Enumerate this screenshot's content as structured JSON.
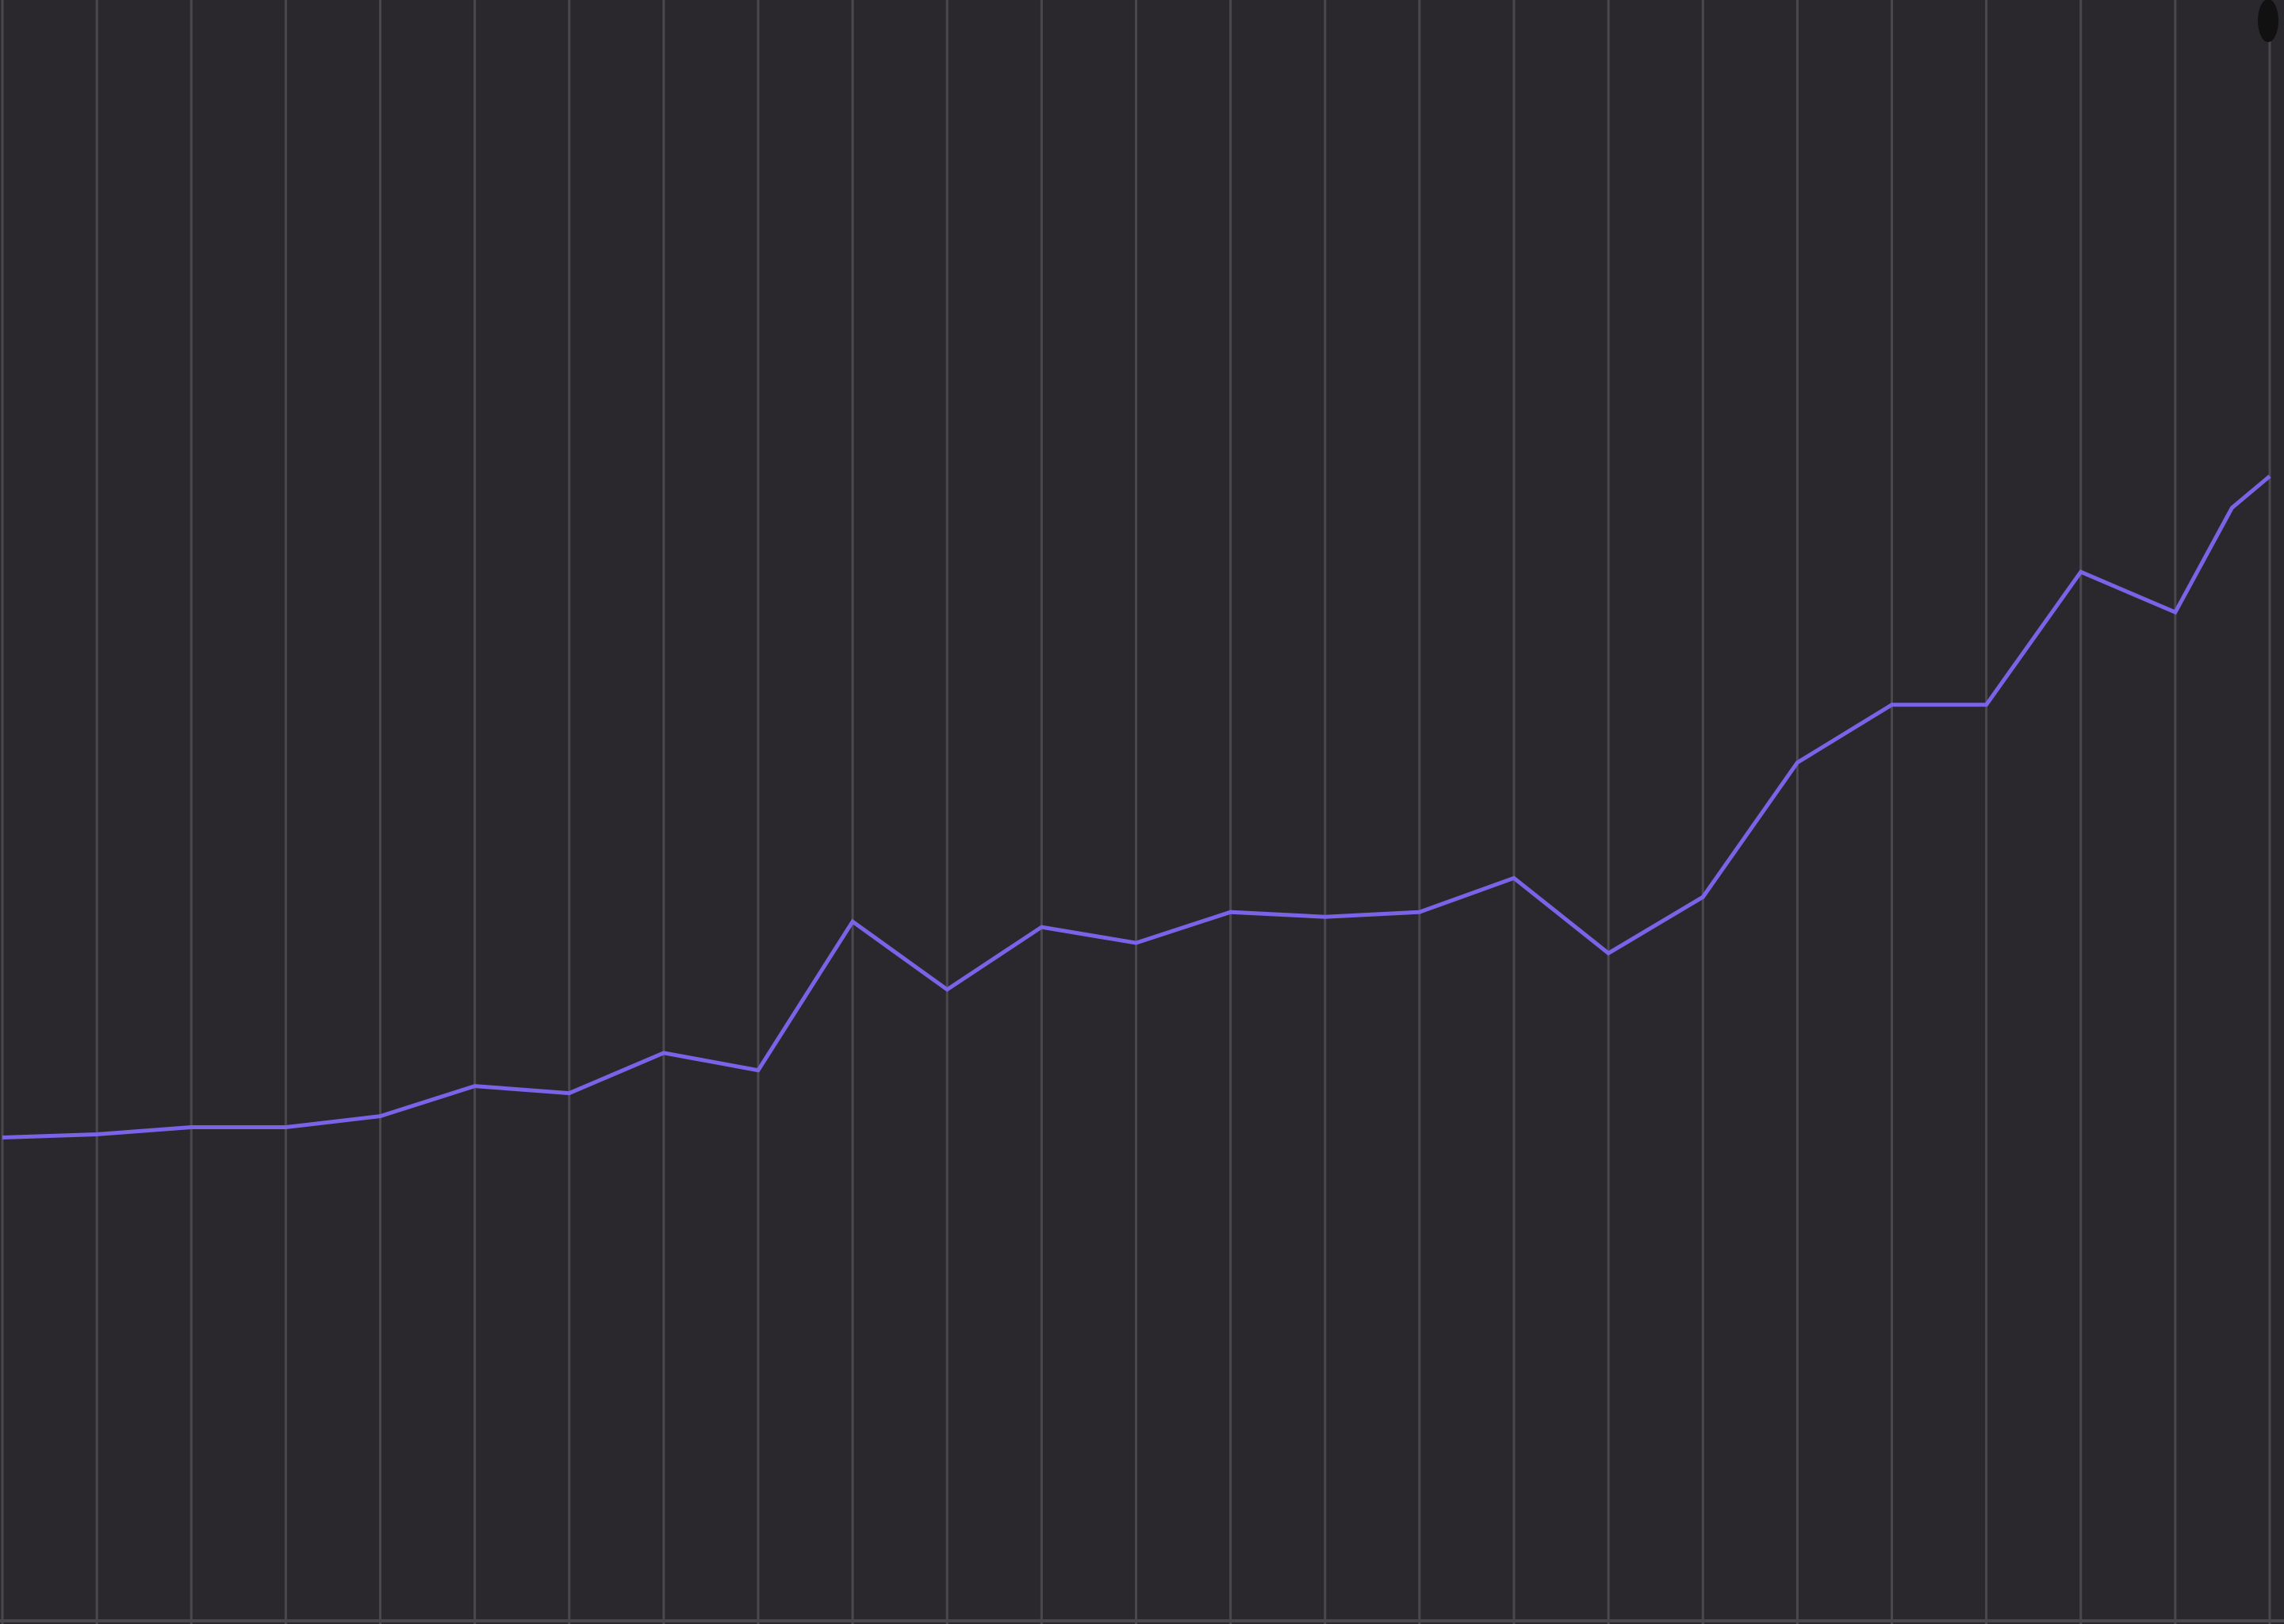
{
  "chart_data": {
    "type": "line",
    "x": [
      0,
      1,
      2,
      3,
      4,
      5,
      6,
      7,
      8,
      9,
      10,
      11,
      12,
      13,
      14,
      15,
      16,
      17,
      18,
      19,
      20,
      21,
      22,
      23,
      24,
      25
    ],
    "x_extra": [
      24.6
    ],
    "series": [
      {
        "color": "#7b63e8",
        "points": [
          [
            0,
            1438
          ],
          [
            1,
            1434
          ],
          [
            2,
            1425
          ],
          [
            3,
            1425
          ],
          [
            4,
            1411
          ],
          [
            5,
            1373
          ],
          [
            6,
            1382
          ],
          [
            7,
            1331
          ],
          [
            8,
            1353
          ],
          [
            9,
            1165
          ],
          [
            10,
            1251
          ],
          [
            11,
            1172
          ],
          [
            12,
            1192
          ],
          [
            13,
            1153
          ],
          [
            14,
            1159
          ],
          [
            15,
            1153
          ],
          [
            16,
            1110
          ],
          [
            17,
            1205
          ],
          [
            18,
            1134
          ],
          [
            19,
            964
          ],
          [
            20,
            891
          ],
          [
            21,
            891
          ],
          [
            22,
            723
          ],
          [
            23,
            774
          ],
          [
            23.6,
            642
          ],
          [
            24,
            602
          ]
        ]
      }
    ],
    "ylim": [
      0,
      2048
    ],
    "grid": true,
    "legend": "none",
    "colors": {
      "background": "#2a282d",
      "grid": "#4a484d",
      "line": "#7b63e8",
      "marker": "#111111"
    }
  }
}
